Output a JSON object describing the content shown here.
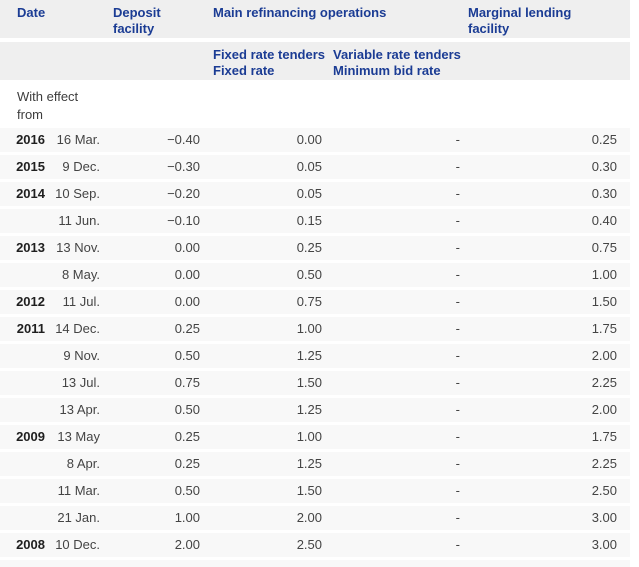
{
  "colors": {
    "header_blue": "#1b3c94",
    "header_bg": "#efefef",
    "row_bg": "#f8f8f8",
    "body_text": "#444444",
    "year_text": "#1f1f1f"
  },
  "table": {
    "header": {
      "date": "Date",
      "deposit_facility": "Deposit\nfacility",
      "main_refinancing": "Main refinancing operations",
      "marginal_lending": "Marginal lending\nfacility",
      "fixed_rate_tenders": "Fixed rate tenders\nFixed rate",
      "variable_rate_tenders": "Variable rate tenders\nMinimum bid rate"
    },
    "with_effect_from": "With effect\nfrom",
    "rows": [
      {
        "year": "2016",
        "date": "16 Mar.",
        "deposit": "−0.40",
        "fixed": "0.00",
        "variable": "-",
        "marginal": "0.25"
      },
      {
        "year": "2015",
        "date": "9 Dec.",
        "deposit": "−0.30",
        "fixed": "0.05",
        "variable": "-",
        "marginal": "0.30"
      },
      {
        "year": "2014",
        "date": "10 Sep.",
        "deposit": "−0.20",
        "fixed": "0.05",
        "variable": "-",
        "marginal": "0.30"
      },
      {
        "year": "",
        "date": "11 Jun.",
        "deposit": "−0.10",
        "fixed": "0.15",
        "variable": "-",
        "marginal": "0.40"
      },
      {
        "year": "2013",
        "date": "13 Nov.",
        "deposit": "0.00",
        "fixed": "0.25",
        "variable": "-",
        "marginal": "0.75"
      },
      {
        "year": "",
        "date": "8 May.",
        "deposit": "0.00",
        "fixed": "0.50",
        "variable": "-",
        "marginal": "1.00"
      },
      {
        "year": "2012",
        "date": "11 Jul.",
        "deposit": "0.00",
        "fixed": "0.75",
        "variable": "-",
        "marginal": "1.50"
      },
      {
        "year": "2011",
        "date": "14 Dec.",
        "deposit": "0.25",
        "fixed": "1.00",
        "variable": "-",
        "marginal": "1.75"
      },
      {
        "year": "",
        "date": "9 Nov.",
        "deposit": "0.50",
        "fixed": "1.25",
        "variable": "-",
        "marginal": "2.00"
      },
      {
        "year": "",
        "date": "13 Jul.",
        "deposit": "0.75",
        "fixed": "1.50",
        "variable": "-",
        "marginal": "2.25"
      },
      {
        "year": "",
        "date": "13 Apr.",
        "deposit": "0.50",
        "fixed": "1.25",
        "variable": "-",
        "marginal": "2.00"
      },
      {
        "year": "2009",
        "date": "13 May",
        "deposit": "0.25",
        "fixed": "1.00",
        "variable": "-",
        "marginal": "1.75"
      },
      {
        "year": "",
        "date": "8 Apr.",
        "deposit": "0.25",
        "fixed": "1.25",
        "variable": "-",
        "marginal": "2.25"
      },
      {
        "year": "",
        "date": "11 Mar.",
        "deposit": "0.50",
        "fixed": "1.50",
        "variable": "-",
        "marginal": "2.50"
      },
      {
        "year": "",
        "date": "21 Jan.",
        "deposit": "1.00",
        "fixed": "2.00",
        "variable": "-",
        "marginal": "3.00"
      },
      {
        "year": "2008",
        "date": "10 Dec.",
        "deposit": "2.00",
        "fixed": "2.50",
        "variable": "-",
        "marginal": "3.00"
      }
    ]
  }
}
